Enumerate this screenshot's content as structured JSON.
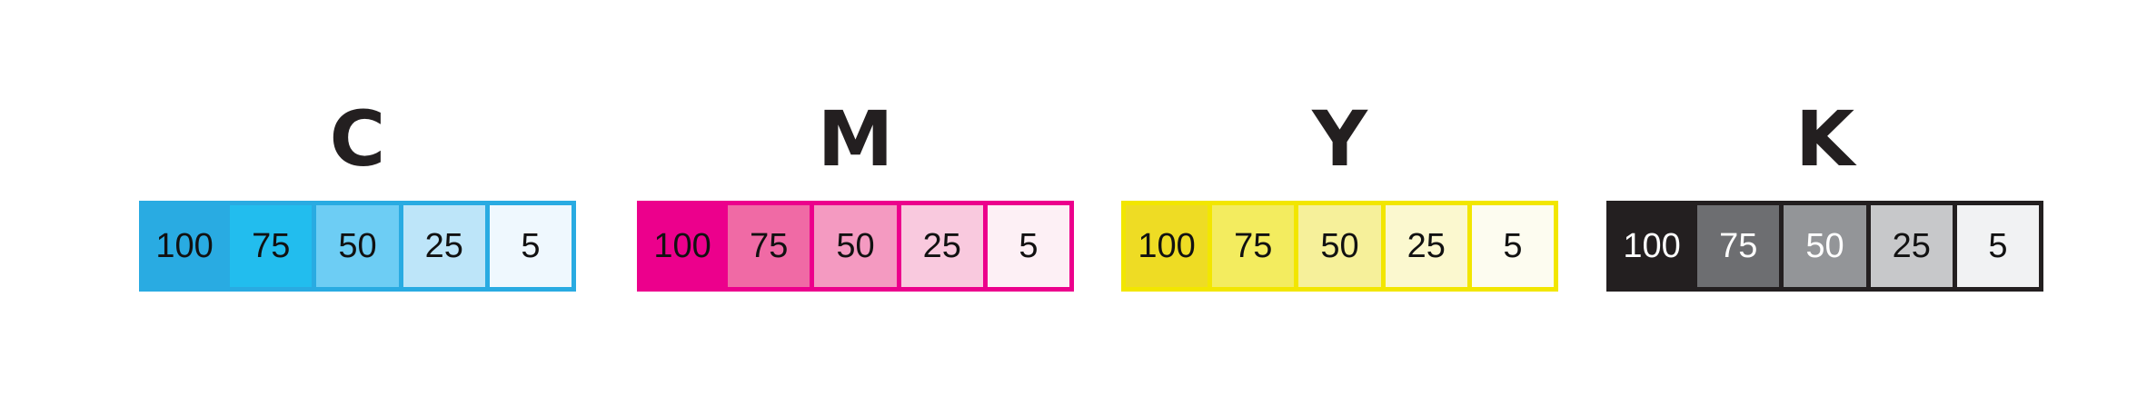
{
  "groups": [
    {
      "letter": "C",
      "border": "#29abe2",
      "cells": [
        {
          "label": "100",
          "color": "#29abe2",
          "text": "#111"
        },
        {
          "label": "75",
          "color": "#22bdee",
          "text": "#111"
        },
        {
          "label": "50",
          "color": "#6dcdf4",
          "text": "#111"
        },
        {
          "label": "25",
          "color": "#bde5f9",
          "text": "#111"
        },
        {
          "label": "5",
          "color": "#eff8fe",
          "text": "#111"
        }
      ]
    },
    {
      "letter": "M",
      "border": "#ec008c",
      "cells": [
        {
          "label": "100",
          "color": "#ec008c",
          "text": "#111"
        },
        {
          "label": "75",
          "color": "#f06aa5",
          "text": "#111"
        },
        {
          "label": "50",
          "color": "#f49ac1",
          "text": "#111"
        },
        {
          "label": "25",
          "color": "#f9c9de",
          "text": "#111"
        },
        {
          "label": "5",
          "color": "#fdf0f5",
          "text": "#111"
        }
      ]
    },
    {
      "letter": "Y",
      "border": "#f2e600",
      "cells": [
        {
          "label": "100",
          "color": "#eedc24",
          "text": "#111"
        },
        {
          "label": "75",
          "color": "#f3ec5f",
          "text": "#111"
        },
        {
          "label": "50",
          "color": "#f6f09a",
          "text": "#111"
        },
        {
          "label": "25",
          "color": "#fbf8cf",
          "text": "#111"
        },
        {
          "label": "5",
          "color": "#fdfcf0",
          "text": "#111"
        }
      ]
    },
    {
      "letter": "K",
      "border": "#231f20",
      "cells": [
        {
          "label": "100",
          "color": "#231f20",
          "text": "#ffffff"
        },
        {
          "label": "75",
          "color": "#6d6e71",
          "text": "#ffffff"
        },
        {
          "label": "50",
          "color": "#939598",
          "text": "#ffffff"
        },
        {
          "label": "25",
          "color": "#c7c8ca",
          "text": "#111"
        },
        {
          "label": "5",
          "color": "#f1f2f3",
          "text": "#111"
        }
      ]
    }
  ]
}
